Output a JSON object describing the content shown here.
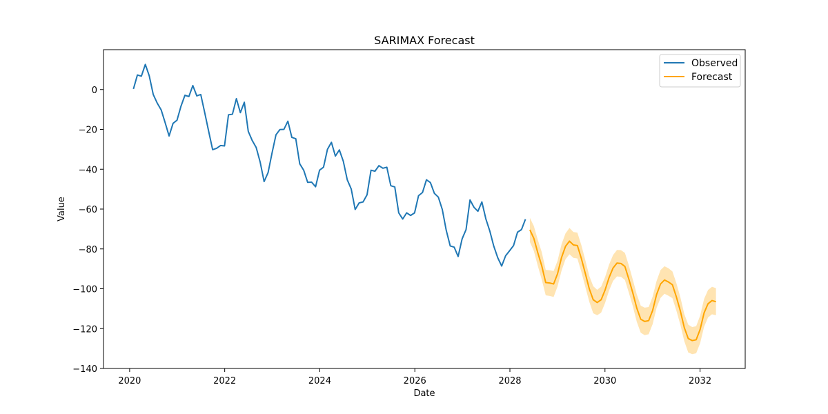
{
  "chart_data": {
    "type": "line",
    "title": "SARIMAX Forecast",
    "xlabel": "Date",
    "ylabel": "Value",
    "xlim": [
      2019.45,
      2032.95
    ],
    "ylim": [
      -140,
      20
    ],
    "x_ticks": [
      2020,
      2022,
      2024,
      2026,
      2028,
      2030,
      2032
    ],
    "x_tick_labels": [
      "2020",
      "2022",
      "2024",
      "2026",
      "2028",
      "2030",
      "2032"
    ],
    "y_ticks": [
      0,
      -20,
      -40,
      -60,
      -80,
      -100,
      -120,
      -140
    ],
    "y_tick_labels": [
      "0",
      "−20",
      "−40",
      "−60",
      "−80",
      "−100",
      "−120",
      "−140"
    ],
    "legend_position": "top-right",
    "series": [
      {
        "name": "Observed",
        "color": "#1f77b4",
        "x_start": 2020.08,
        "x_step": 0.0833,
        "values": [
          0.3,
          7.3,
          6.7,
          12.6,
          6.8,
          -2.5,
          -6.8,
          -10.2,
          -16.6,
          -23.3,
          -17.0,
          -15.4,
          -8.4,
          -2.9,
          -3.5,
          2.0,
          -3.2,
          -2.5,
          -11.6,
          -21.0,
          -30.2,
          -29.5,
          -28.1,
          -28.3,
          -12.7,
          -12.4,
          -4.6,
          -11.6,
          -6.4,
          -21.0,
          -25.6,
          -29.1,
          -36.4,
          -46.2,
          -41.7,
          -31.9,
          -22.7,
          -20.1,
          -20.0,
          -15.9,
          -24.0,
          -24.7,
          -37.3,
          -40.5,
          -46.6,
          -46.5,
          -48.8,
          -40.5,
          -39.0,
          -30.0,
          -26.5,
          -33.4,
          -30.3,
          -36.0,
          -45.3,
          -49.9,
          -60.2,
          -56.9,
          -56.4,
          -52.8,
          -40.5,
          -41.0,
          -38.2,
          -39.5,
          -39.0,
          -48.3,
          -48.9,
          -61.9,
          -65.0,
          -61.9,
          -63.2,
          -61.9,
          -53.3,
          -51.7,
          -45.3,
          -46.7,
          -52.1,
          -54.0,
          -60.2,
          -70.7,
          -78.5,
          -79.1,
          -83.8,
          -75.0,
          -70.3,
          -55.4,
          -59.1,
          -61.1,
          -56.4,
          -64.9,
          -71.0,
          -78.6,
          -84.4,
          -88.6,
          -83.4,
          -80.9,
          -78.3,
          -71.6,
          -70.3,
          -65.1
        ]
      },
      {
        "name": "Forecast",
        "color": "#ffa500",
        "band_color": "#ffa500",
        "x_start": 2028.42,
        "x_step": 0.0833,
        "values": [
          -70.4,
          -74.7,
          -81.9,
          -88.5,
          -96.9,
          -97.1,
          -97.6,
          -92.4,
          -84.3,
          -78.7,
          -76.1,
          -78.0,
          -78.3,
          -84.8,
          -92.3,
          -100.0,
          -105.5,
          -106.9,
          -105.5,
          -100.6,
          -94.4,
          -89.6,
          -87.1,
          -87.3,
          -88.8,
          -95.2,
          -102.1,
          -109.7,
          -115.3,
          -116.4,
          -116.0,
          -110.9,
          -102.9,
          -97.6,
          -95.6,
          -96.6,
          -98.0,
          -104.1,
          -111.1,
          -119.5,
          -125.0,
          -126.0,
          -125.6,
          -120.4,
          -112.1,
          -107.5,
          -105.9,
          -106.5
        ],
        "lower": [
          -76.5,
          -81.0,
          -88.5,
          -95.4,
          -103.3,
          -103.6,
          -104.1,
          -98.8,
          -90.9,
          -85.2,
          -82.7,
          -84.5,
          -84.8,
          -91.5,
          -99.0,
          -106.5,
          -112.3,
          -113.3,
          -112.0,
          -107.1,
          -100.9,
          -96.1,
          -93.8,
          -94.0,
          -95.6,
          -102.0,
          -108.8,
          -116.6,
          -122.1,
          -123.3,
          -122.8,
          -117.8,
          -109.6,
          -104.6,
          -102.5,
          -103.5,
          -104.7,
          -111.0,
          -118.0,
          -126.3,
          -132.0,
          -132.8,
          -132.4,
          -127.3,
          -119.1,
          -114.4,
          -112.8,
          -113.3
        ],
        "upper": [
          -64.4,
          -68.5,
          -75.4,
          -81.6,
          -90.5,
          -90.7,
          -91.1,
          -85.9,
          -77.6,
          -72.2,
          -69.5,
          -71.5,
          -71.8,
          -78.1,
          -85.6,
          -93.5,
          -98.7,
          -100.5,
          -98.9,
          -94.1,
          -87.9,
          -83.1,
          -80.5,
          -80.6,
          -82.0,
          -88.3,
          -95.4,
          -102.8,
          -108.5,
          -109.5,
          -109.2,
          -104.0,
          -96.1,
          -90.6,
          -88.7,
          -89.7,
          -91.3,
          -97.2,
          -104.2,
          -112.7,
          -118.0,
          -119.2,
          -118.8,
          -113.5,
          -105.1,
          -100.6,
          -99.0,
          -99.7
        ]
      }
    ]
  }
}
